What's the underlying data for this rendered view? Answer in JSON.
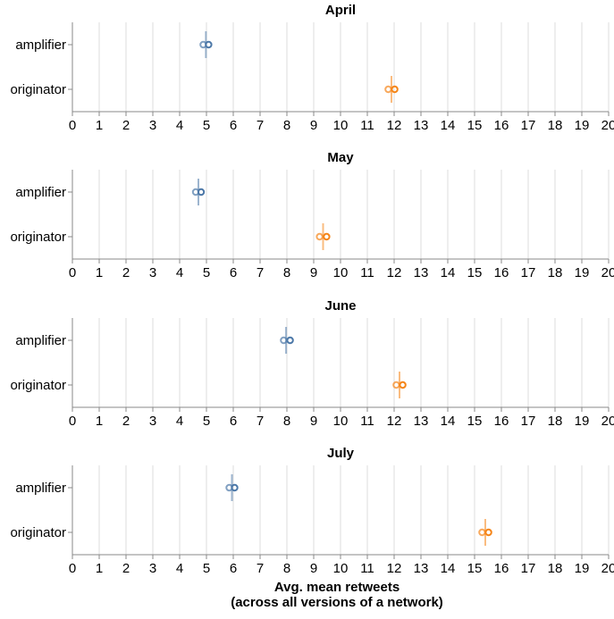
{
  "chart_data": {
    "type": "scatter",
    "xlabel_lines": [
      "Avg. mean retweets",
      "(across all versions of a network)"
    ],
    "x_ticks": [
      0,
      1,
      2,
      3,
      4,
      5,
      6,
      7,
      8,
      9,
      10,
      11,
      12,
      13,
      14,
      15,
      16,
      17,
      18,
      19,
      20
    ],
    "xlim": [
      0,
      20
    ],
    "categories": [
      "amplifier",
      "originator"
    ],
    "colors": {
      "amplifier": "#4c78a8",
      "originator": "#f58518"
    },
    "grid": true,
    "panels": [
      {
        "title": "April",
        "points": [
          {
            "category": "amplifier",
            "values": [
              4.88,
              5.08
            ],
            "mean": 4.98,
            "ci": [
              4.97,
              4.99
            ]
          },
          {
            "category": "originator",
            "values": [
              11.78,
              12.02
            ],
            "mean": 11.9,
            "ci": [
              11.88,
              11.92
            ]
          }
        ]
      },
      {
        "title": "May",
        "points": [
          {
            "category": "amplifier",
            "values": [
              4.6,
              4.8
            ],
            "mean": 4.7,
            "ci": [
              4.68,
              4.72
            ]
          },
          {
            "category": "originator",
            "values": [
              9.22,
              9.48
            ],
            "mean": 9.35,
            "ci": [
              9.33,
              9.37
            ]
          }
        ]
      },
      {
        "title": "June",
        "points": [
          {
            "category": "amplifier",
            "values": [
              7.88,
              8.12
            ],
            "mean": 7.97,
            "ci": [
              7.95,
              7.99
            ]
          },
          {
            "category": "originator",
            "values": [
              12.08,
              12.32
            ],
            "mean": 12.2,
            "ci": [
              12.18,
              12.22
            ]
          }
        ]
      },
      {
        "title": "July",
        "points": [
          {
            "category": "amplifier",
            "values": [
              5.85,
              6.05
            ],
            "mean": 5.95,
            "ci": [
              5.93,
              5.97
            ]
          },
          {
            "category": "originator",
            "values": [
              15.28,
              15.52
            ],
            "mean": 15.4,
            "ci": [
              15.38,
              15.42
            ]
          }
        ]
      }
    ]
  }
}
